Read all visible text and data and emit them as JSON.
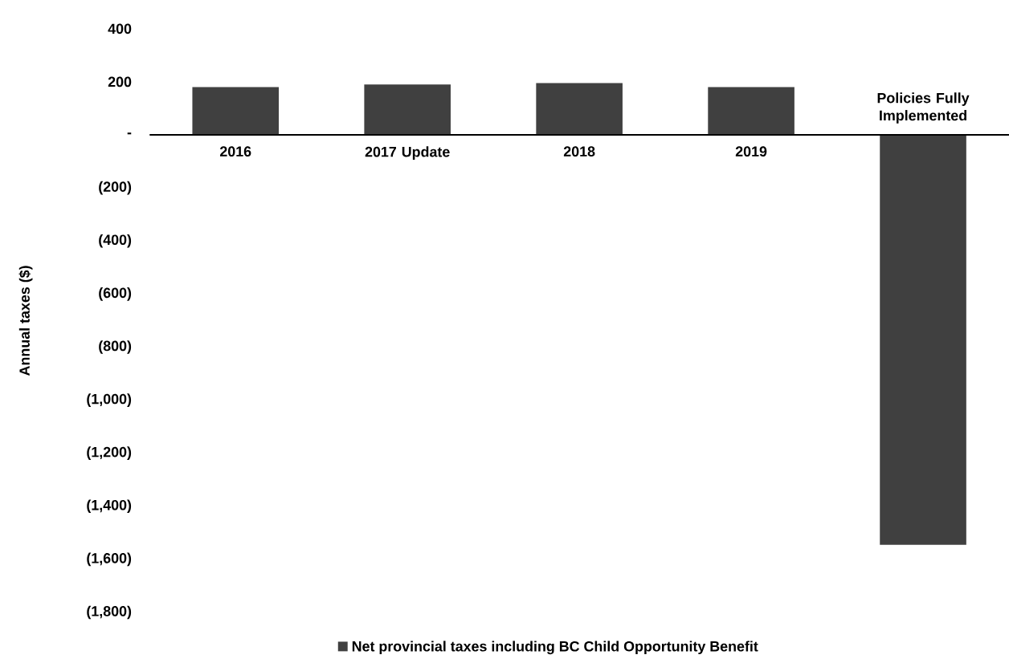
{
  "chart_data": {
    "type": "bar",
    "ylabel": "Annual taxes ($)",
    "categories": [
      "2016",
      "2017 Update",
      "2018",
      "2019",
      "Policies Fully Implemented"
    ],
    "series": [
      {
        "name": "Net provincial taxes including BC Child Opportunity Benefit",
        "color": "#404040",
        "values": [
          180,
          190,
          195,
          180,
          -1545
        ]
      }
    ],
    "ylim": [
      -1800,
      400
    ],
    "yticks": [
      400,
      200,
      {
        "value": 0,
        "label": "-"
      },
      {
        "value": -200,
        "label": "(200)"
      },
      {
        "value": -400,
        "label": "(400)"
      },
      {
        "value": -600,
        "label": "(600)"
      },
      {
        "value": -800,
        "label": "(800)"
      },
      {
        "value": -1000,
        "label": "(1,000)"
      },
      {
        "value": -1200,
        "label": "(1,200)"
      },
      {
        "value": -1400,
        "label": "(1,400)"
      },
      {
        "value": -1600,
        "label": "(1,600)"
      },
      {
        "value": -1800,
        "label": "(1,800)"
      }
    ],
    "legend": "bottom"
  }
}
